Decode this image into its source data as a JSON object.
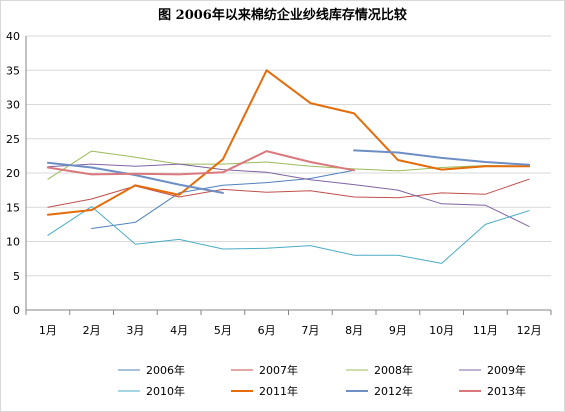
{
  "chart_data": {
    "type": "line",
    "title": "图  2006年以来棉纺企业纱线库存情况比较",
    "xlabel": "",
    "ylabel": "",
    "categories": [
      "1月",
      "2月",
      "3月",
      "4月",
      "5月",
      "6月",
      "7月",
      "8月",
      "9月",
      "10月",
      "11月",
      "12月"
    ],
    "y_ticks": [
      "0",
      "5",
      "10",
      "15",
      "20",
      "25",
      "30",
      "35",
      "40"
    ],
    "ylim": [
      0,
      40
    ],
    "grid": "horizontal",
    "legend_position": "bottom",
    "series": [
      {
        "name": "2006年",
        "color": "#4f81bd",
        "width": 1,
        "values": [
          null,
          11.9,
          12.8,
          17.1,
          18.2,
          18.6,
          19.2,
          20.4,
          null,
          null,
          null,
          null
        ]
      },
      {
        "name": "2007年",
        "color": "#c0504d",
        "width": 1,
        "values": [
          15.0,
          16.2,
          18.1,
          16.5,
          17.6,
          17.2,
          17.4,
          16.5,
          16.4,
          17.1,
          16.9,
          19.1
        ]
      },
      {
        "name": "2008年",
        "color": "#9bbb59",
        "width": 1,
        "values": [
          19.1,
          23.2,
          22.3,
          21.3,
          21.3,
          21.6,
          21.0,
          20.6,
          20.3,
          20.8,
          21.1,
          21.0
        ]
      },
      {
        "name": "2009年",
        "color": "#8064a2",
        "width": 1,
        "values": [
          20.9,
          21.3,
          21.0,
          21.3,
          20.5,
          20.1,
          19.0,
          18.3,
          17.5,
          15.5,
          15.3,
          12.2
        ]
      },
      {
        "name": "2010年",
        "color": "#4bacc6",
        "width": 1,
        "values": [
          10.9,
          15.1,
          9.6,
          10.3,
          8.9,
          9.0,
          9.4,
          8.0,
          8.0,
          6.8,
          12.5,
          14.5
        ]
      },
      {
        "name": "2011年",
        "color": "#e46c0a",
        "width": 2,
        "values": [
          13.9,
          14.6,
          18.2,
          16.8,
          22.0,
          35.0,
          30.2,
          28.7,
          21.9,
          20.5,
          21.0,
          21.0
        ]
      },
      {
        "name": "2012年",
        "color": "#6d8fc5",
        "width": 2,
        "values": [
          21.5,
          20.8,
          19.7,
          18.3,
          17.1,
          null,
          null,
          23.3,
          23.0,
          22.2,
          21.6,
          21.2
        ]
      },
      {
        "name": "2013年",
        "color": "#d9797d",
        "width": 2,
        "values": [
          20.8,
          19.8,
          19.9,
          19.8,
          20.1,
          23.2,
          21.6,
          20.4,
          null,
          null,
          null,
          null
        ]
      }
    ]
  }
}
